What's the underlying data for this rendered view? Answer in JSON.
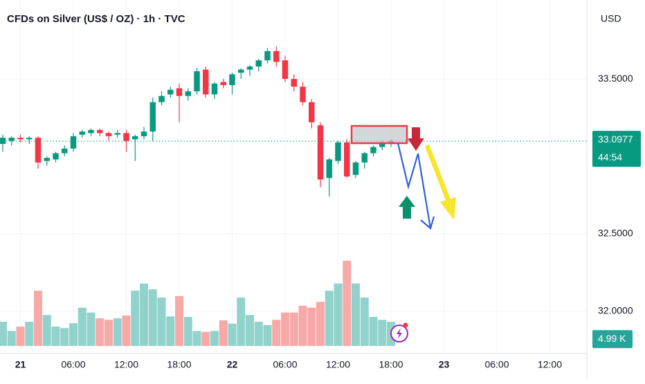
{
  "chart_data": {
    "type": "candlestick",
    "title": "CFDs on Silver (US$ / OZ) · 1h · TVC",
    "currency": "USD",
    "categories": [
      null,
      null,
      "21",
      null,
      null,
      null,
      null,
      null,
      "06:00",
      null,
      null,
      null,
      null,
      null,
      "12:00",
      null,
      null,
      null,
      null,
      null,
      "18:00",
      null,
      null,
      null,
      null,
      null,
      "22",
      null,
      null,
      null,
      null,
      null,
      "06:00",
      null,
      null,
      null,
      null,
      null,
      "12:00",
      null,
      null,
      null,
      null,
      null,
      "18:00",
      null,
      null,
      null,
      null,
      null,
      "23",
      null,
      null,
      null,
      null,
      null,
      "06:00",
      null,
      null,
      null,
      null,
      null,
      "12:00"
    ],
    "open": [
      33.08,
      33.1,
      33.12,
      33.11,
      33.12,
      32.97,
      32.98,
      33.02,
      33.05,
      33.14,
      33.15,
      33.17,
      33.15,
      33.14,
      33.15,
      33.11,
      33.13,
      33.16,
      33.35,
      33.4,
      33.44,
      33.39,
      33.42,
      33.56,
      33.4,
      33.48,
      33.46,
      33.54,
      33.56,
      33.58,
      33.62,
      33.68,
      33.62,
      33.5,
      33.45,
      33.35,
      33.2,
      32.86,
      32.97,
      33.09,
      32.88,
      32.96,
      33.02,
      33.06,
      33.09,
      null,
      null,
      null,
      null,
      null,
      null,
      null,
      null,
      null,
      null,
      null,
      null,
      null,
      null,
      null,
      null,
      null,
      null
    ],
    "high": [
      33.14,
      33.13,
      33.14,
      33.13,
      33.13,
      33.0,
      33.03,
      33.07,
      33.15,
      33.17,
      33.18,
      33.18,
      33.16,
      33.17,
      33.17,
      33.14,
      33.19,
      33.38,
      33.42,
      33.45,
      33.47,
      33.44,
      33.57,
      33.58,
      33.48,
      33.5,
      33.54,
      33.57,
      33.59,
      33.63,
      33.7,
      33.71,
      33.65,
      33.53,
      33.48,
      33.37,
      33.22,
      32.99,
      33.1,
      33.11,
      32.97,
      33.03,
      33.07,
      33.1,
      33.11,
      null,
      null,
      null,
      null,
      null,
      null,
      null,
      null,
      null,
      null,
      null,
      null,
      null,
      null,
      null,
      null,
      null,
      null
    ],
    "low": [
      33.03,
      33.07,
      33.09,
      33.08,
      32.92,
      32.94,
      32.96,
      33.0,
      33.03,
      33.12,
      33.13,
      33.13,
      33.1,
      33.12,
      33.03,
      32.97,
      33.11,
      33.1,
      33.33,
      33.38,
      33.22,
      33.36,
      33.4,
      33.38,
      33.37,
      33.44,
      33.4,
      33.5,
      33.52,
      33.55,
      33.6,
      33.58,
      33.48,
      33.42,
      33.33,
      33.18,
      32.8,
      32.74,
      32.95,
      32.86,
      32.86,
      32.92,
      33.0,
      33.04,
      33.06,
      null,
      null,
      null,
      null,
      null,
      null,
      null,
      null,
      null,
      null,
      null,
      null,
      null,
      null,
      null,
      null,
      null,
      null
    ],
    "close": [
      33.12,
      33.12,
      33.11,
      33.12,
      32.96,
      32.99,
      33.02,
      33.05,
      33.13,
      33.16,
      33.17,
      33.15,
      33.13,
      33.15,
      33.1,
      33.13,
      33.16,
      33.35,
      33.39,
      33.43,
      33.39,
      33.42,
      33.55,
      33.4,
      33.47,
      33.46,
      33.53,
      33.56,
      33.58,
      33.62,
      33.68,
      33.61,
      33.5,
      33.45,
      33.35,
      33.22,
      32.85,
      32.98,
      33.09,
      32.87,
      32.96,
      33.02,
      33.06,
      33.09,
      33.0977,
      null,
      null,
      null,
      null,
      null,
      null,
      null,
      null,
      null,
      null,
      null,
      null,
      null,
      null,
      null,
      null,
      null,
      null
    ],
    "volume": [
      5000,
      3100,
      4000,
      5000,
      11400,
      6400,
      4000,
      3700,
      4700,
      7900,
      6900,
      5700,
      5400,
      5700,
      6300,
      11400,
      12900,
      11700,
      10000,
      6100,
      10300,
      6000,
      3100,
      2900,
      3100,
      5300,
      4600,
      10000,
      6400,
      5000,
      4300,
      5400,
      6900,
      6900,
      8300,
      7900,
      9100,
      11400,
      12900,
      17600,
      12900,
      10000,
      6000,
      5400,
      4990,
      null,
      null,
      null,
      null,
      null,
      null,
      null,
      null,
      null,
      null,
      null,
      null,
      null,
      null,
      null,
      null,
      null,
      null
    ],
    "volume_label": {
      "value": 4990,
      "label": "4.99 K"
    },
    "volume_lim": [
      0,
      40000
    ],
    "last_price": 33.0977,
    "countdown": "44:54",
    "ylim": [
      31.73,
      34.01
    ],
    "yticks": [
      {
        "value": 33.5,
        "label": "33.5000"
      },
      {
        "value": 32.5,
        "label": "32.5000"
      },
      {
        "value": 32.0,
        "label": "32.0000"
      }
    ],
    "up_color": "#089981",
    "down_color": "#f23645",
    "up_volume_color": "#92d2cc",
    "down_volume_color": "#f7a9a7",
    "grid": true
  }
}
